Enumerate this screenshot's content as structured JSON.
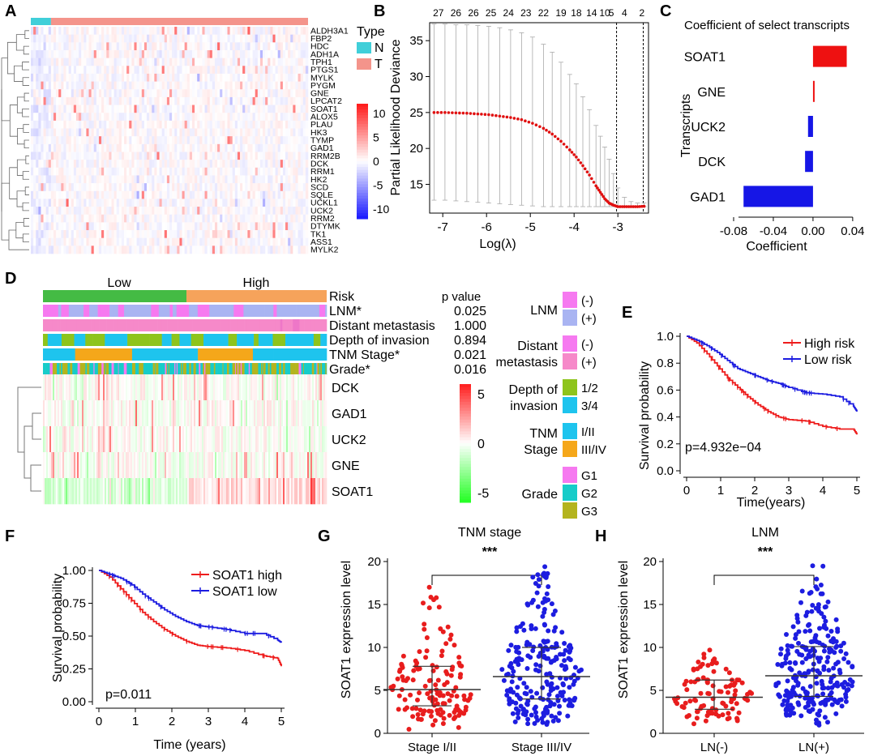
{
  "panels": {
    "A": "A",
    "B": "B",
    "C": "C",
    "D": "D",
    "E": "E",
    "F": "F",
    "G": "G",
    "H": "H"
  },
  "colors": {
    "normal": "#40cfd9",
    "tumor": "#f4948b",
    "heat_high": "#ec1c24",
    "heat_low": "#1a1aff",
    "d_low": "#1ee61e",
    "high_risk": "#ee1c1c",
    "low_risk": "#1c1ce0",
    "risk_low": "#44bb44",
    "risk_high": "#f6a35b",
    "g1": "#f679f0",
    "g2": "#17ccc9",
    "g3": "#b4b41e",
    "plus": "#a9b4f2",
    "dist_plus": "#f689c9",
    "d12": "#8ec41c",
    "d34": "#1ec4ee",
    "s34": "#f5a71a"
  },
  "chart_data": [
    {
      "panel": "A",
      "type": "heatmap",
      "genes": [
        "ALDH3A1",
        "FBP2",
        "HDC",
        "ADH1A",
        "TPH1",
        "PTGS1",
        "MYLK",
        "PYGM",
        "GNE",
        "LPCAT2",
        "SOAT1",
        "ALOX5",
        "PLAU",
        "HK3",
        "TYMP",
        "GAD1",
        "RRM2B",
        "DCK",
        "RRM1",
        "HK2",
        "SCD",
        "SQLE",
        "UCKL1",
        "UCK2",
        "RRM2",
        "DTYMK",
        "TK1",
        "ASS1",
        "MYLK2"
      ],
      "legend_title": "Type",
      "legend_items": [
        "N",
        "T"
      ],
      "scale_ticks": [
        "10",
        "5",
        "0",
        "-5",
        "-10"
      ],
      "range": [
        -12,
        12
      ]
    },
    {
      "panel": "B",
      "type": "line",
      "xlabel": "Log(λ)",
      "ylabel": "Partial Likelihood Deviance",
      "xlim": [
        -7.3,
        -2.3
      ],
      "ylim": [
        11,
        37.5
      ],
      "xticks": [
        "-7",
        "-6",
        "-5",
        "-4",
        "-3"
      ],
      "yticks": [
        "15",
        "20",
        "25",
        "30",
        "35"
      ],
      "top_labels": [
        "27",
        "26",
        "26",
        "25",
        "24",
        "23",
        "22",
        "19",
        "18",
        "14",
        "10",
        "5",
        "4",
        "2"
      ],
      "top_positions": [
        -7.1,
        -6.7,
        -6.3,
        -5.9,
        -5.5,
        -5.1,
        -4.7,
        -4.3,
        -3.95,
        -3.6,
        -3.3,
        -3.15,
        -2.85,
        -2.45
      ],
      "vlines": [
        -3.03,
        -2.42
      ],
      "x": [
        -7.2,
        -6.95,
        -6.7,
        -6.45,
        -6.2,
        -5.95,
        -5.7,
        -5.45,
        -5.2,
        -4.95,
        -4.7,
        -4.5,
        -4.3,
        -4.1,
        -3.95,
        -3.8,
        -3.65,
        -3.5,
        -3.4,
        -3.3,
        -3.2,
        -3.1,
        -3.0,
        -2.85,
        -2.7,
        -2.55,
        -2.4
      ],
      "y": [
        25.0,
        25.0,
        24.95,
        24.9,
        24.8,
        24.7,
        24.5,
        24.3,
        24.0,
        23.5,
        22.8,
        22.0,
        21.0,
        19.8,
        18.8,
        17.6,
        16.3,
        14.8,
        13.9,
        13.0,
        12.4,
        12.1,
        11.9,
        11.9,
        11.9,
        11.9,
        11.95
      ],
      "upper": [
        37.3,
        37.3,
        37.2,
        37.2,
        37.1,
        37.0,
        36.8,
        36.5,
        36.1,
        35.5,
        34.5,
        33.4,
        32.0,
        30.3,
        29.0,
        27.2,
        25.4,
        23.2,
        21.7,
        20.2,
        18.5,
        16.5,
        14.5,
        13.2,
        12.6,
        12.4,
        12.4
      ],
      "lower": [
        12.8,
        12.8,
        12.7,
        12.6,
        12.5,
        12.4,
        12.3,
        12.2,
        12.1,
        12.0,
        11.9,
        11.9,
        11.9,
        11.9,
        11.9,
        11.9,
        11.9,
        11.9,
        11.9,
        11.9,
        11.9,
        11.9,
        11.9,
        11.9,
        11.9,
        11.9,
        11.9
      ]
    },
    {
      "panel": "C",
      "type": "bar",
      "title": "Coefficient of select transcripts",
      "categories": [
        "SOAT1",
        "GNE",
        "UCK2",
        "DCK",
        "GAD1"
      ],
      "values": [
        0.034,
        0.001,
        -0.005,
        -0.008,
        -0.07
      ],
      "xlabel": "Coefficient",
      "ylabel": "Transcripts",
      "xlim": [
        -0.08,
        0.045
      ],
      "xticks": [
        "-0.08",
        "-0.04",
        "0.00",
        "0.04"
      ]
    },
    {
      "panel": "D",
      "type": "heatmap",
      "groups": [
        "Low",
        "High"
      ],
      "annotation_rows": [
        {
          "label": "Risk",
          "p": "",
          "sig": false
        },
        {
          "label": "LNM*",
          "p": "0.025",
          "sig": true
        },
        {
          "label": "Distant metastasis",
          "p": "1.000",
          "sig": false
        },
        {
          "label": "Depth of invasion",
          "p": "0.894",
          "sig": false
        },
        {
          "label": "TNM Stage*",
          "p": "0.021",
          "sig": true
        },
        {
          "label": "Grade*",
          "p": "0.016",
          "sig": true
        }
      ],
      "pvalue_header": "p value",
      "genes": [
        "DCK",
        "GAD1",
        "UCK2",
        "GNE",
        "SOAT1"
      ],
      "scale_ticks": [
        "5",
        "0",
        "-5"
      ],
      "legend": [
        {
          "title": [
            "LNM"
          ],
          "items": [
            "(-)",
            "(+)"
          ]
        },
        {
          "title": [
            "Distant",
            "metastasis"
          ],
          "items": [
            "(-)",
            "(+)"
          ]
        },
        {
          "title": [
            "Depth of",
            "invasion"
          ],
          "items": [
            "1/2",
            "3/4"
          ]
        },
        {
          "title": [
            "TNM",
            "Stage"
          ],
          "items": [
            "I/II",
            "III/IV"
          ]
        },
        {
          "title": [
            "Grade"
          ],
          "items": [
            "G1",
            "G2",
            "G3"
          ]
        }
      ]
    },
    {
      "panel": "E",
      "type": "line",
      "xlabel": "Time(years)",
      "ylabel": "Survival probability",
      "xlim": [
        0,
        5
      ],
      "ylim": [
        0,
        1
      ],
      "xticks": [
        "0",
        "1",
        "2",
        "3",
        "4",
        "5"
      ],
      "yticks": [
        "0.0",
        "0.2",
        "0.4",
        "0.6",
        "0.8",
        "1.0"
      ],
      "annotation": "p=4.932e−04",
      "series": [
        {
          "name": "High risk",
          "x": [
            0,
            0.3,
            0.6,
            0.9,
            1.2,
            1.5,
            1.8,
            2.1,
            2.4,
            2.7,
            3.0,
            3.5,
            4.0,
            4.5,
            4.9,
            5.0
          ],
          "y": [
            1.0,
            0.95,
            0.87,
            0.78,
            0.69,
            0.62,
            0.55,
            0.49,
            0.44,
            0.4,
            0.38,
            0.37,
            0.33,
            0.31,
            0.31,
            0.27
          ]
        },
        {
          "name": "Low risk",
          "x": [
            0,
            0.3,
            0.6,
            0.9,
            1.2,
            1.5,
            1.8,
            2.1,
            2.4,
            2.7,
            3.0,
            3.5,
            4.0,
            4.5,
            4.9,
            5.0
          ],
          "y": [
            1.0,
            0.97,
            0.93,
            0.88,
            0.82,
            0.76,
            0.73,
            0.7,
            0.67,
            0.65,
            0.62,
            0.58,
            0.57,
            0.55,
            0.48,
            0.44
          ]
        }
      ]
    },
    {
      "panel": "F",
      "type": "line",
      "xlabel": "Time (years)",
      "ylabel": "Survival probability",
      "xlim": [
        0,
        5
      ],
      "ylim": [
        0,
        1
      ],
      "xticks": [
        "0",
        "1",
        "2",
        "3",
        "4",
        "5"
      ],
      "yticks": [
        "0.00",
        "0.25",
        "0.50",
        "0.75",
        "1.00"
      ],
      "annotation": "p=0.011",
      "series": [
        {
          "name": "SOAT1 high",
          "x": [
            0,
            0.3,
            0.6,
            0.9,
            1.2,
            1.5,
            1.8,
            2.1,
            2.4,
            2.7,
            3.0,
            3.5,
            4.0,
            4.5,
            4.9,
            5.0
          ],
          "y": [
            1.0,
            0.95,
            0.86,
            0.77,
            0.68,
            0.61,
            0.55,
            0.5,
            0.46,
            0.43,
            0.42,
            0.41,
            0.39,
            0.35,
            0.33,
            0.27
          ]
        },
        {
          "name": "SOAT1 low",
          "x": [
            0,
            0.3,
            0.6,
            0.9,
            1.2,
            1.5,
            1.8,
            2.1,
            2.4,
            2.7,
            3.0,
            3.5,
            4.0,
            4.5,
            4.9,
            5.0
          ],
          "y": [
            1.0,
            0.97,
            0.94,
            0.89,
            0.82,
            0.76,
            0.7,
            0.65,
            0.61,
            0.58,
            0.57,
            0.55,
            0.52,
            0.52,
            0.47,
            0.45
          ]
        }
      ]
    },
    {
      "panel": "G",
      "type": "scatter",
      "title": "TNM stage",
      "sig": "***",
      "ylabel": "SOAT1 expression level",
      "ylim": [
        0,
        20
      ],
      "yticks": [
        "0",
        "5",
        "10",
        "15",
        "20"
      ],
      "categories": [
        "Stage I/II",
        "Stage III/IV"
      ],
      "groups": [
        {
          "name": "Stage I/II",
          "color": "#e81d1d",
          "n": 140,
          "median": 5.1,
          "q1": 3.2,
          "q3": 7.8,
          "min": 0.4,
          "max": 17.0,
          "seed": 11
        },
        {
          "name": "Stage III/IV",
          "color": "#1d1de0",
          "n": 230,
          "median": 6.6,
          "q1": 4.0,
          "q3": 10.0,
          "min": 0.5,
          "max": 19.4,
          "seed": 29
        }
      ]
    },
    {
      "panel": "H",
      "type": "scatter",
      "title": "LNM",
      "sig": "***",
      "ylabel": "SOAT1 expression level",
      "ylim": [
        0,
        20
      ],
      "yticks": [
        "0",
        "5",
        "10",
        "15",
        "20"
      ],
      "categories": [
        "LN(-)",
        "LN(+)"
      ],
      "groups": [
        {
          "name": "LN(-)",
          "color": "#e81d1d",
          "n": 100,
          "median": 4.2,
          "q1": 2.8,
          "q3": 6.2,
          "min": 0.5,
          "max": 9.7,
          "seed": 43
        },
        {
          "name": "LN(+)",
          "color": "#1d1de0",
          "n": 260,
          "median": 6.7,
          "q1": 4.3,
          "q3": 10.1,
          "min": 0.6,
          "max": 19.5,
          "seed": 71
        }
      ]
    }
  ]
}
